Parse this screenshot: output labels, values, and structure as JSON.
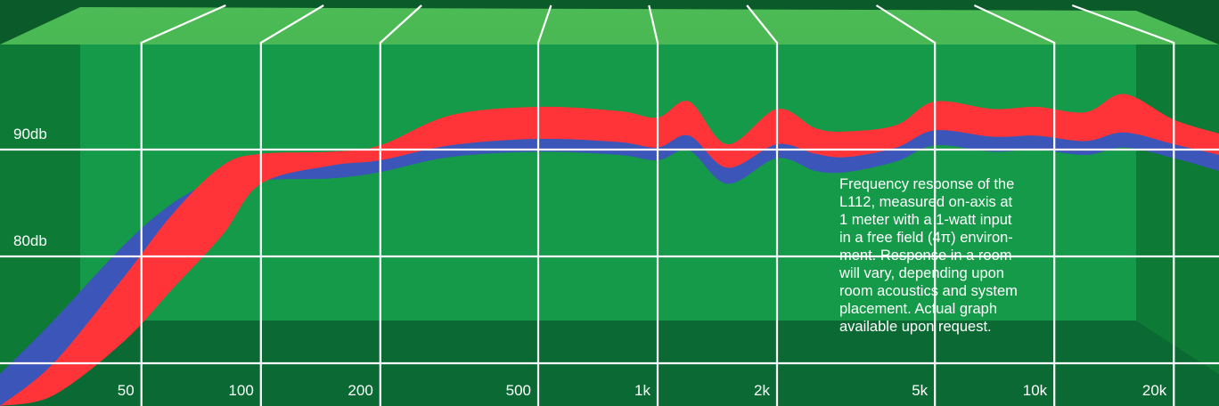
{
  "colors": {
    "background_top": "#3ca84a",
    "background_main": "#149a48",
    "background_bottom": "#0b6a33",
    "side_panel": "#0d7a36",
    "grid": "#ffffff",
    "red_band": "#ff3438",
    "blue_band": "#3b55b8"
  },
  "chart_data": {
    "type": "area",
    "title": "",
    "xlabel": "",
    "ylabel": "",
    "x_scale": "log",
    "xlim": [
      22,
      26000
    ],
    "ylim": [
      66,
      104
    ],
    "x_ticks": [
      {
        "value": 50,
        "label": "50"
      },
      {
        "value": 100,
        "label": "100"
      },
      {
        "value": 200,
        "label": "200"
      },
      {
        "value": 500,
        "label": "500"
      },
      {
        "value": 1000,
        "label": "1k"
      },
      {
        "value": 2000,
        "label": "2k"
      },
      {
        "value": 5000,
        "label": "5k"
      },
      {
        "value": 10000,
        "label": "10k"
      },
      {
        "value": 20000,
        "label": "20k"
      }
    ],
    "y_ticks": [
      {
        "value": 90,
        "label": "90db"
      },
      {
        "value": 80,
        "label": "80db"
      },
      {
        "value": 70,
        "label": ""
      }
    ],
    "grid": true,
    "series": [
      {
        "color": "#ff3438",
        "x": [
          22,
          30,
          45,
          60,
          80,
          100,
          150,
          200,
          300,
          500,
          800,
          1000,
          1200,
          1500,
          2000,
          2500,
          3000,
          4000,
          5000,
          7000,
          9000,
          12000,
          15000,
          20000,
          26000
        ],
        "upper": [
          66,
          70,
          78,
          84,
          88.5,
          89.6,
          89.8,
          90.4,
          93.2,
          94.0,
          93.6,
          93.0,
          94.5,
          90.5,
          93.8,
          92.0,
          91.7,
          92.3,
          94.5,
          93.8,
          94.0,
          93.5,
          95.2,
          92.8,
          91.5
        ],
        "lower": [
          66,
          67,
          72,
          77,
          82,
          86.8,
          88.5,
          89.0,
          90.4,
          91.0,
          90.7,
          90.2,
          91.3,
          88.3,
          90.5,
          89.6,
          89.3,
          90.2,
          91.8,
          91.2,
          91.3,
          90.8,
          91.6,
          90.5,
          89.5
        ]
      },
      {
        "color": "#3b55b8",
        "x": [
          22,
          30,
          45,
          60,
          80,
          100,
          150,
          200,
          300,
          500,
          800,
          1000,
          1200,
          1500,
          2000,
          2500,
          3000,
          4000,
          5000,
          7000,
          9000,
          12000,
          15000,
          20000,
          26000
        ],
        "upper": [
          69,
          74,
          81,
          85,
          87.5,
          88.5,
          88.7,
          89.2,
          90.6,
          91.1,
          90.8,
          90.3,
          91.4,
          88.6,
          90.6,
          89.7,
          89.4,
          90.3,
          91.9,
          91.3,
          91.4,
          90.9,
          91.7,
          90.7,
          89.6
        ],
        "lower": [
          66,
          69,
          77,
          82,
          85.8,
          87.1,
          87.3,
          87.9,
          89.3,
          89.8,
          89.5,
          89.0,
          89.9,
          86.8,
          89.2,
          88.0,
          87.9,
          88.9,
          90.4,
          89.8,
          90.0,
          89.5,
          90.2,
          89.2,
          88.0
        ]
      }
    ]
  },
  "caption": {
    "lines": [
      "Frequency response of the",
      "L112, measured on-axis at",
      "1 meter with a 1-watt input",
      "in a free field (4π) environ-",
      "ment. Response in a room",
      "will vary, depending upon",
      "room acoustics and system",
      "placement. Actual graph",
      "available upon request."
    ]
  }
}
